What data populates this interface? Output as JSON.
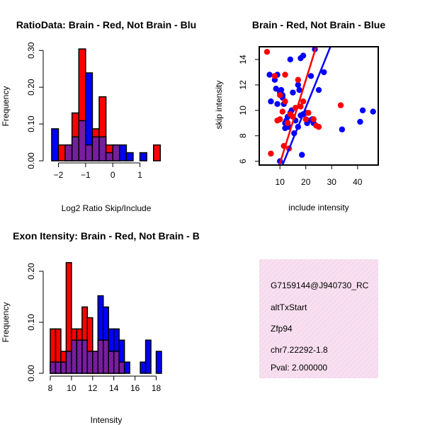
{
  "colors": {
    "red": "#ff0000",
    "blue": "#0000ff",
    "purple": "#7b1fa2",
    "black": "#000000",
    "info_bg": "#f6d6ec",
    "pval": "#cc0000"
  },
  "chart_data": [
    {
      "type": "bar",
      "title": "RatioData: Brain - Red, Not Brain - Blu",
      "xlabel": "Log2 Ratio Skip/Include",
      "ylabel": "Frequency",
      "xlim": [
        -2.3,
        1.95
      ],
      "ylim": [
        0,
        0.31
      ],
      "xticks": [
        -2,
        -1,
        0,
        1
      ],
      "xtick_labels": [
        "−2",
        "−1",
        "0",
        "1"
      ],
      "yticks": [
        0,
        0.1,
        0.2,
        0.3
      ],
      "ytick_labels": [
        "0.00",
        "0.10",
        "0.20",
        "0.30"
      ],
      "bin_edges": [
        -2.25,
        -2.0,
        -1.75,
        -1.5,
        -1.25,
        -1.0,
        -0.75,
        -0.5,
        -0.25,
        0.0,
        0.25,
        0.5,
        0.75,
        1.0,
        1.25,
        1.5,
        1.75
      ],
      "series": [
        {
          "name": "Brain",
          "color": "red",
          "values": [
            0,
            0.043,
            0.043,
            0.13,
            0.304,
            0.043,
            0.087,
            0.174,
            0.043,
            0.043,
            0,
            0,
            0,
            0,
            0,
            0.043
          ]
        },
        {
          "name": "Not Brain",
          "color": "blue",
          "values": [
            0.087,
            0,
            0.043,
            0.065,
            0.109,
            0.239,
            0.065,
            0.065,
            0.022,
            0.043,
            0.043,
            0.022,
            0,
            0.022,
            0,
            0
          ]
        }
      ]
    },
    {
      "type": "scatter",
      "title": "Brain - Red, Not Brain - Blue",
      "xlabel": "include intensity",
      "ylabel": "skip intensity",
      "xlim": [
        2,
        48
      ],
      "ylim": [
        5.7,
        15.0
      ],
      "xticks": [
        10,
        20,
        30,
        40
      ],
      "yticks": [
        6,
        8,
        10,
        12,
        14
      ],
      "series": [
        {
          "name": "Brain",
          "color": "red",
          "points": [
            [
              5,
              14.6
            ],
            [
              6.5,
              6.6
            ],
            [
              8,
              12.7
            ],
            [
              9,
              9.2
            ],
            [
              10,
              9.3
            ],
            [
              10,
              11.2
            ],
            [
              11,
              9.9
            ],
            [
              11.5,
              7.2
            ],
            [
              12,
              10.7
            ],
            [
              12,
              12.8
            ],
            [
              13,
              9.0
            ],
            [
              13.5,
              7.0
            ],
            [
              14,
              9.7
            ],
            [
              15,
              9.5
            ],
            [
              16,
              10.2
            ],
            [
              17,
              12.4
            ],
            [
              18,
              10.3
            ],
            [
              19,
              10.7
            ],
            [
              20,
              9.3
            ],
            [
              21,
              9.8
            ],
            [
              23,
              9.3
            ],
            [
              24,
              8.8
            ],
            [
              25,
              8.7
            ],
            [
              33.5,
              10.4
            ]
          ],
          "fit": [
            [
              9.8,
              5.7
            ],
            [
              24,
              15.0
            ]
          ]
        },
        {
          "name": "Not Brain",
          "color": "blue",
          "points": [
            [
              6,
              12.8
            ],
            [
              6.5,
              10.7
            ],
            [
              8,
              12.4
            ],
            [
              8.5,
              11.7
            ],
            [
              9,
              12.8
            ],
            [
              9,
              10.5
            ],
            [
              10,
              11.4
            ],
            [
              10,
              6.0
            ],
            [
              10.5,
              11.6
            ],
            [
              11,
              11.0
            ],
            [
              11,
              11.2
            ],
            [
              11.5,
              10.5
            ],
            [
              12,
              9.0
            ],
            [
              12,
              8.6
            ],
            [
              12.5,
              9.2
            ],
            [
              13,
              9.5
            ],
            [
              13.5,
              8.7
            ],
            [
              14,
              9.8
            ],
            [
              14,
              14.0
            ],
            [
              14.5,
              10.0
            ],
            [
              15,
              11.4
            ],
            [
              15.5,
              8.2
            ],
            [
              16,
              9.2
            ],
            [
              17,
              12.0
            ],
            [
              17,
              8.7
            ],
            [
              17.5,
              11.6
            ],
            [
              18,
              14.1
            ],
            [
              18,
              9.6
            ],
            [
              18.5,
              6.5
            ],
            [
              19,
              9.7
            ],
            [
              19,
              14.3
            ],
            [
              20,
              9.8
            ],
            [
              20.5,
              9.0
            ],
            [
              21,
              9.2
            ],
            [
              22,
              12.7
            ],
            [
              22.5,
              9.3
            ],
            [
              23,
              9.0
            ],
            [
              23.5,
              14.8
            ],
            [
              25,
              11.6
            ],
            [
              27,
              13.0
            ],
            [
              34,
              8.5
            ],
            [
              41,
              9.1
            ],
            [
              42,
              10.0
            ],
            [
              46,
              9.9
            ]
          ],
          "fit": [
            [
              11,
              5.7
            ],
            [
              29.5,
              15.0
            ]
          ]
        }
      ]
    },
    {
      "type": "bar",
      "title": "Exon Itensity: Brain - Red, Not Brain - B",
      "xlabel": "Intensity",
      "ylabel": "Frequency",
      "xlim": [
        8,
        18.7
      ],
      "ylim": [
        0,
        0.225
      ],
      "xticks": [
        8,
        10,
        12,
        14,
        16,
        18
      ],
      "xtick_labels": [
        "8",
        "10",
        "12",
        "14",
        "16",
        "18"
      ],
      "yticks": [
        0,
        0.1,
        0.2
      ],
      "ytick_labels": [
        "0.00",
        "0.10",
        "0.20"
      ],
      "bin_edges": [
        8.0,
        8.5,
        9.0,
        9.5,
        10.0,
        10.5,
        11.0,
        11.5,
        12.0,
        12.5,
        13.0,
        13.5,
        14.0,
        14.5,
        15.0,
        15.5,
        16.0,
        16.5,
        17.0,
        17.5,
        18.0,
        18.5
      ],
      "series": [
        {
          "name": "Brain",
          "color": "red",
          "values": [
            0.087,
            0.087,
            0.043,
            0.217,
            0.087,
            0.087,
            0.13,
            0.109,
            0.043,
            0.065,
            0.065,
            0.043,
            0.043,
            0.022,
            0,
            0,
            0,
            0,
            0,
            0,
            0
          ]
        },
        {
          "name": "Not Brain",
          "color": "blue",
          "values": [
            0.022,
            0.022,
            0.022,
            0.043,
            0.065,
            0.065,
            0.065,
            0.043,
            0.043,
            0.152,
            0.13,
            0.087,
            0.087,
            0.065,
            0.022,
            0,
            0,
            0.022,
            0.065,
            0,
            0.043
          ]
        }
      ]
    }
  ],
  "info_box": {
    "lines": [
      "G7159144@J940730_RC",
      "altTxStart",
      "Zfp94",
      "chr7.22292-1.8"
    ],
    "pval": "Pval: 2.000000"
  }
}
